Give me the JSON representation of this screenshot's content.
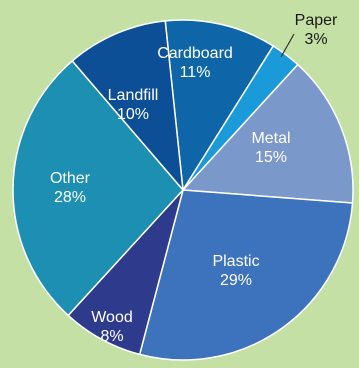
{
  "chart_data": {
    "type": "pie",
    "slices": [
      {
        "label": "Cardboard",
        "value": 11,
        "value_label": "11%",
        "color": "#0e66a8"
      },
      {
        "label": "Paper",
        "value": 3,
        "value_label": "3%",
        "color": "#1a9ad8"
      },
      {
        "label": "Metal",
        "value": 15,
        "value_label": "15%",
        "color": "#7b98cb"
      },
      {
        "label": "Plastic",
        "value": 29,
        "value_label": "29%",
        "color": "#3d72bd"
      },
      {
        "label": "Wood",
        "value": 8,
        "value_label": "8%",
        "color": "#2e3a8c"
      },
      {
        "label": "Other",
        "value": 28,
        "value_label": "28%",
        "color": "#1c8fb2"
      },
      {
        "label": "Landfill",
        "value": 10,
        "value_label": "10%",
        "color": "#0d4f96"
      }
    ],
    "callout_slice": "Paper"
  },
  "colors": {
    "background": "#c5e0a5",
    "slice_border": "#ffffff",
    "label_text": "#ffffff",
    "callout_text": "#1a1a1a"
  }
}
